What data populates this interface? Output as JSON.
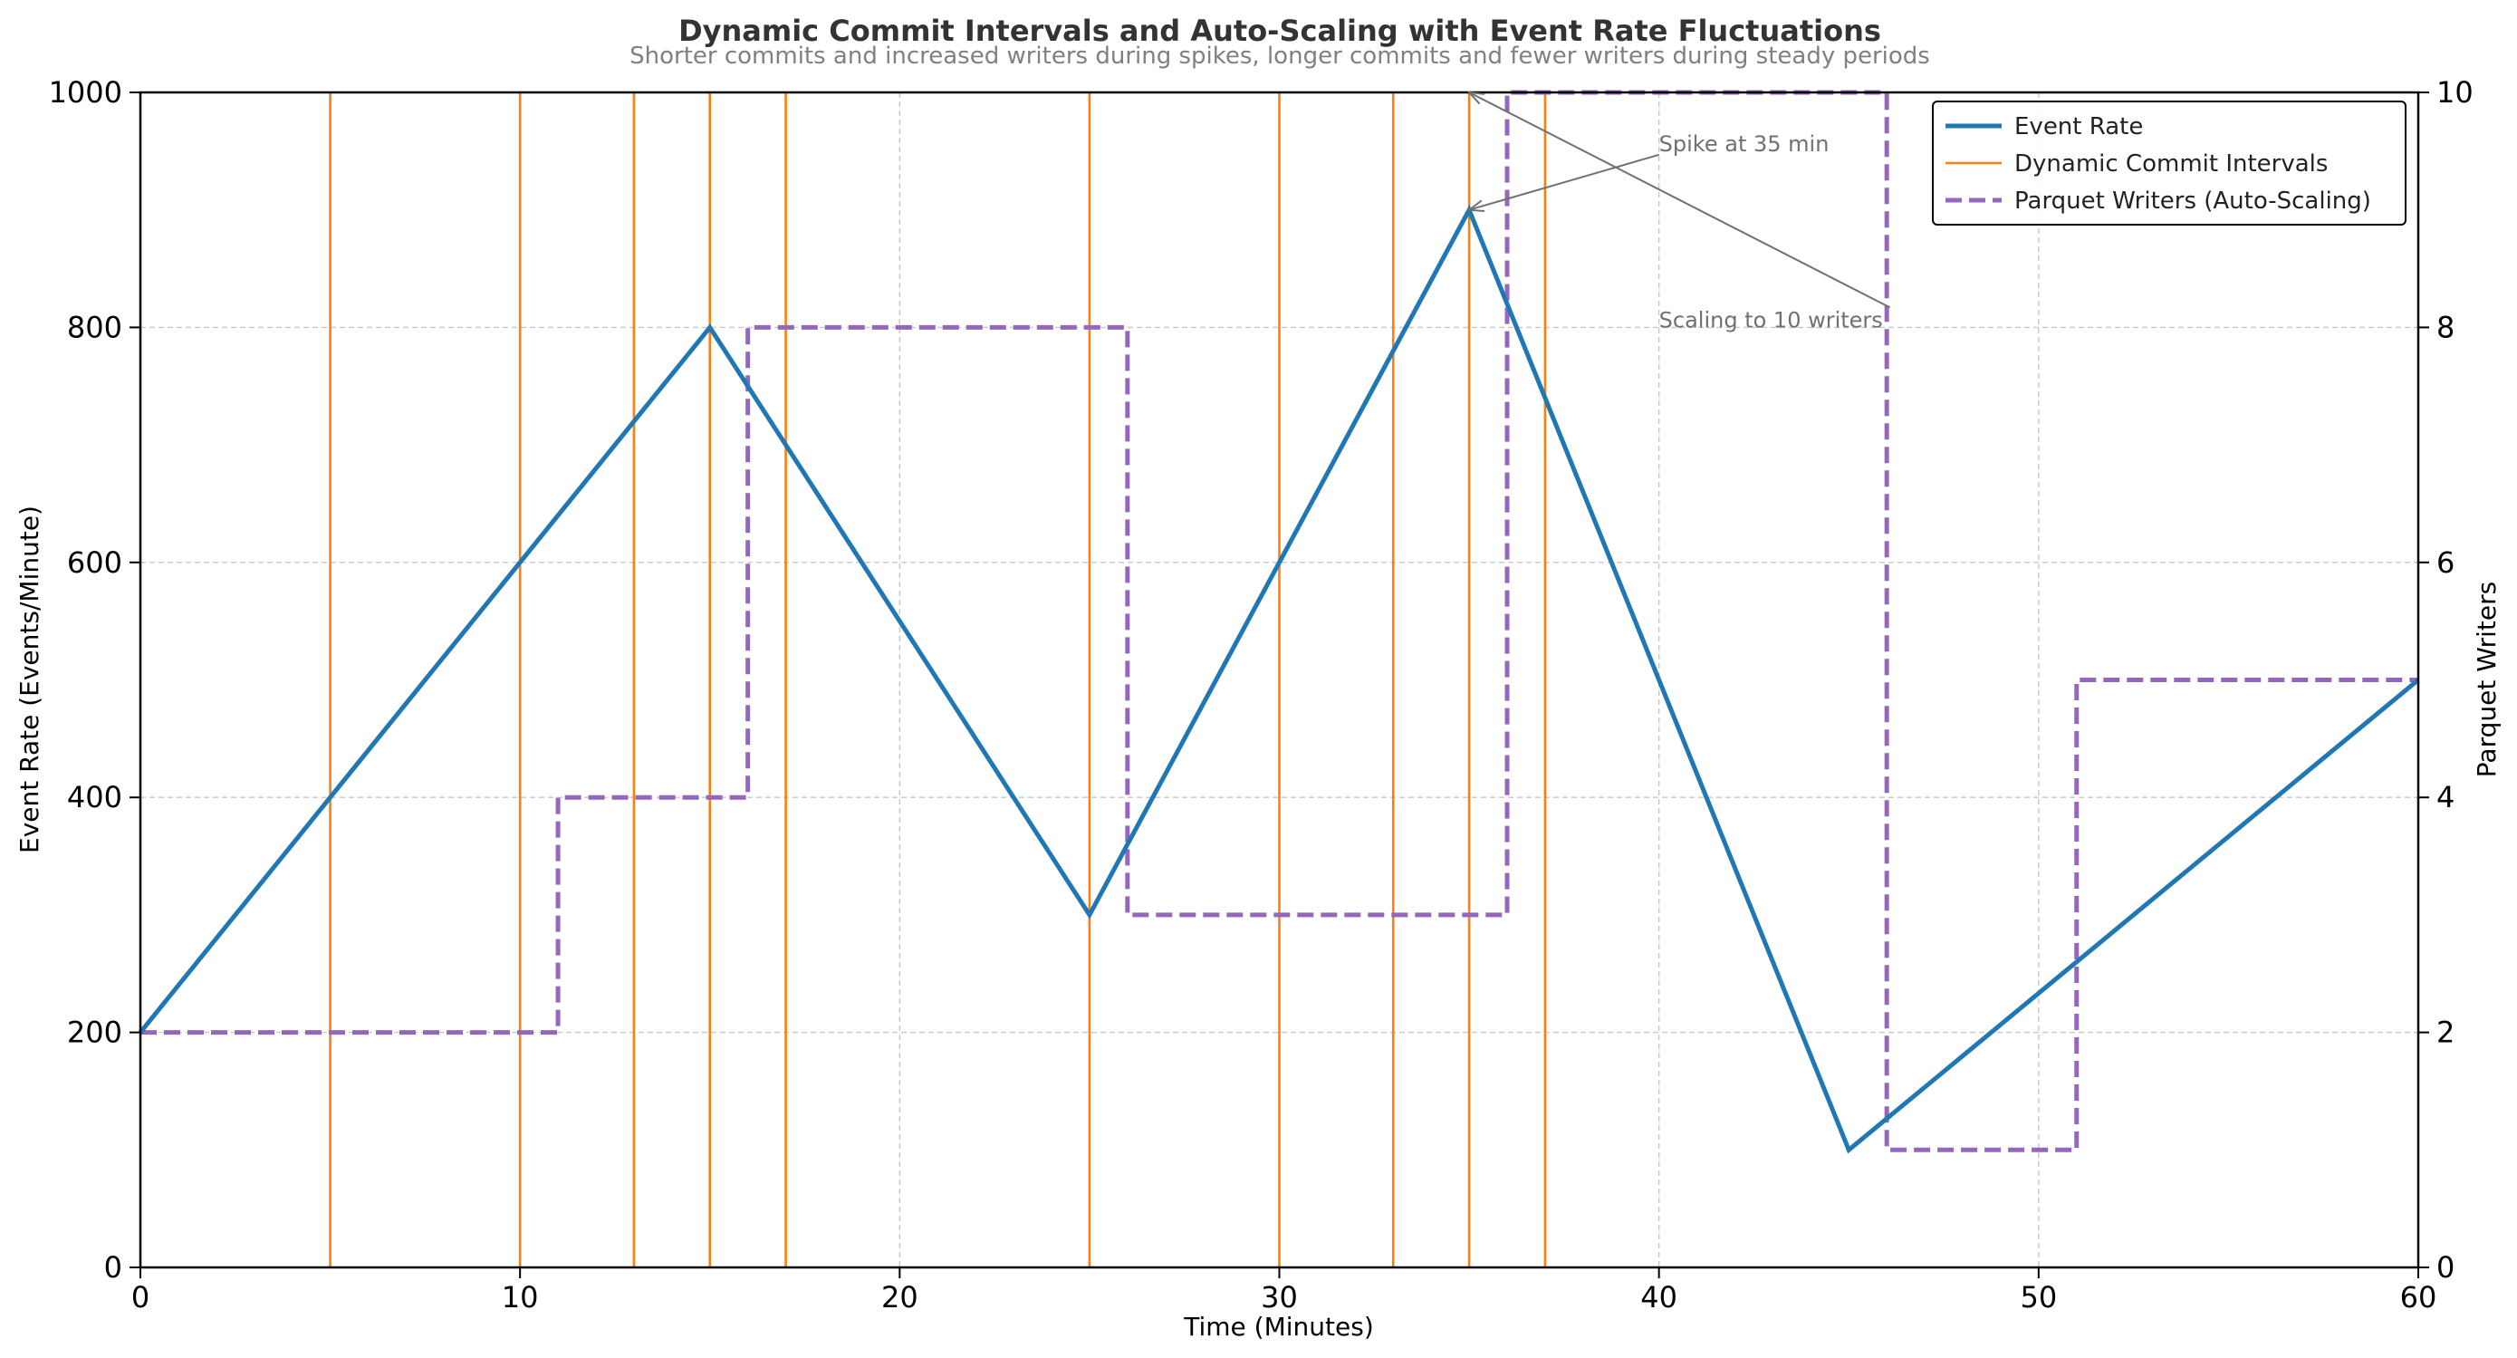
{
  "chart_data": {
    "type": "line",
    "title": "Dynamic Commit Intervals and Auto-Scaling with Event Rate Fluctuations",
    "subtitle": "Shorter commits and increased writers during spikes, longer commits and fewer writers during steady periods",
    "xlabel": "Time (Minutes)",
    "ylabel": "Event Rate (Events/Minute)",
    "y2label": "Parquet Writers",
    "xlim": [
      0,
      60
    ],
    "ylim": [
      0,
      1000
    ],
    "y2lim": [
      0,
      10
    ],
    "xticks": [
      "0",
      "10",
      "20",
      "30",
      "40",
      "50",
      "60"
    ],
    "yticks": [
      "0",
      "200",
      "400",
      "600",
      "800",
      "1000"
    ],
    "y2ticks": [
      "0",
      "2",
      "4",
      "6",
      "8",
      "10"
    ],
    "grid": true,
    "legend_position": "top-right",
    "series": [
      {
        "name": "Event Rate",
        "axis": "left",
        "style": "line",
        "color": "#1f77b4",
        "x": [
          0,
          15,
          25,
          35,
          45,
          60
        ],
        "y": [
          200,
          800,
          300,
          900,
          100,
          500
        ]
      },
      {
        "name": "Dynamic Commit Intervals",
        "axis": "left",
        "style": "vlines",
        "color": "#ff7f0e",
        "x": [
          5,
          10,
          13,
          15,
          17,
          25,
          30,
          33,
          35,
          37
        ]
      },
      {
        "name": "Parquet Writers (Auto-Scaling)",
        "axis": "right",
        "style": "step-dashed",
        "color": "#9467bd",
        "x": [
          0,
          11,
          16,
          26,
          36,
          46,
          51,
          60
        ],
        "y": [
          2,
          4,
          8,
          3,
          10,
          1,
          5,
          5
        ]
      }
    ],
    "annotations": [
      {
        "text": "Spike at 35 min",
        "point": [
          35,
          900
        ],
        "point_axis": "left",
        "text_pos": [
          40,
          950
        ],
        "color": "#707070"
      },
      {
        "text": "Scaling to 10 writers",
        "point": [
          35,
          10
        ],
        "point_axis": "right",
        "text_pos": [
          40,
          800
        ],
        "color": "#707070"
      }
    ]
  }
}
